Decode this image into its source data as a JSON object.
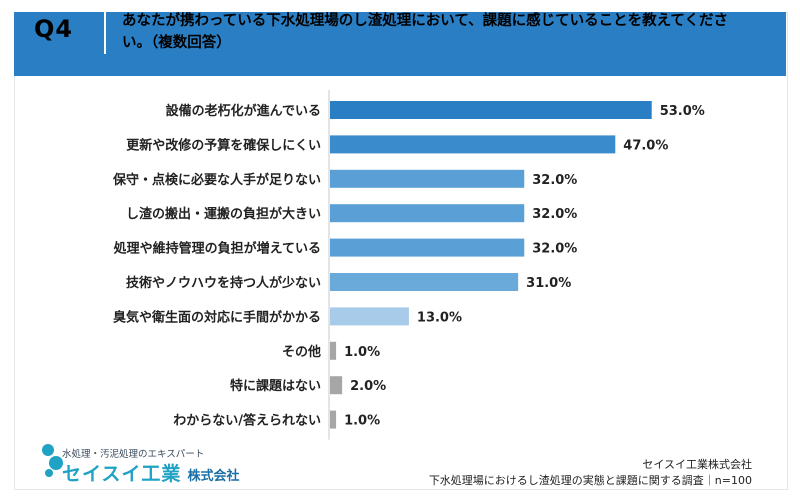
{
  "header": {
    "q_label": "Q4",
    "question": "あなたが携わっている下水処理場のし渣処理において、課題に感じていることを教えてください。（複数回答）"
  },
  "chart_data": {
    "type": "bar",
    "orientation": "horizontal",
    "categories": [
      "設備の老朽化が進んでいる",
      "更新や改修の予算を確保しにくい",
      "保守・点検に必要な人手が足りない",
      "し渣の搬出・運搬の負担が大きい",
      "処理や維持管理の負担が増えている",
      "技術やノウハウを持つ人が少ない",
      "臭気や衛生面の対応に手間がかかる",
      "その他",
      "特に課題はない",
      "わからない/答えられない"
    ],
    "values": [
      53.0,
      47.0,
      32.0,
      32.0,
      32.0,
      31.0,
      13.0,
      1.0,
      2.0,
      1.0
    ],
    "value_labels": [
      "53.0%",
      "47.0%",
      "32.0%",
      "32.0%",
      "32.0%",
      "31.0%",
      "13.0%",
      "1.0%",
      "2.0%",
      "1.0%"
    ],
    "colors": [
      "#2a7ec3",
      "#3a8bcc",
      "#5aa0d6",
      "#5aa0d6",
      "#5aa0d6",
      "#6aaadb",
      "#a7cbe9",
      "#a6a6a6",
      "#a6a6a6",
      "#a6a6a6"
    ],
    "xlim": [
      0,
      100
    ],
    "grid": false,
    "legend": "none"
  },
  "footer": {
    "logo_tagline": "水処理・汚泥処理のエキスパート",
    "logo_name": "セイスイ工業",
    "logo_suffix": "株式会社",
    "source_company": "セイスイ工業株式会社",
    "source_survey": "下水処理場におけるし渣処理の実態と課題に関する調査｜n=100"
  }
}
